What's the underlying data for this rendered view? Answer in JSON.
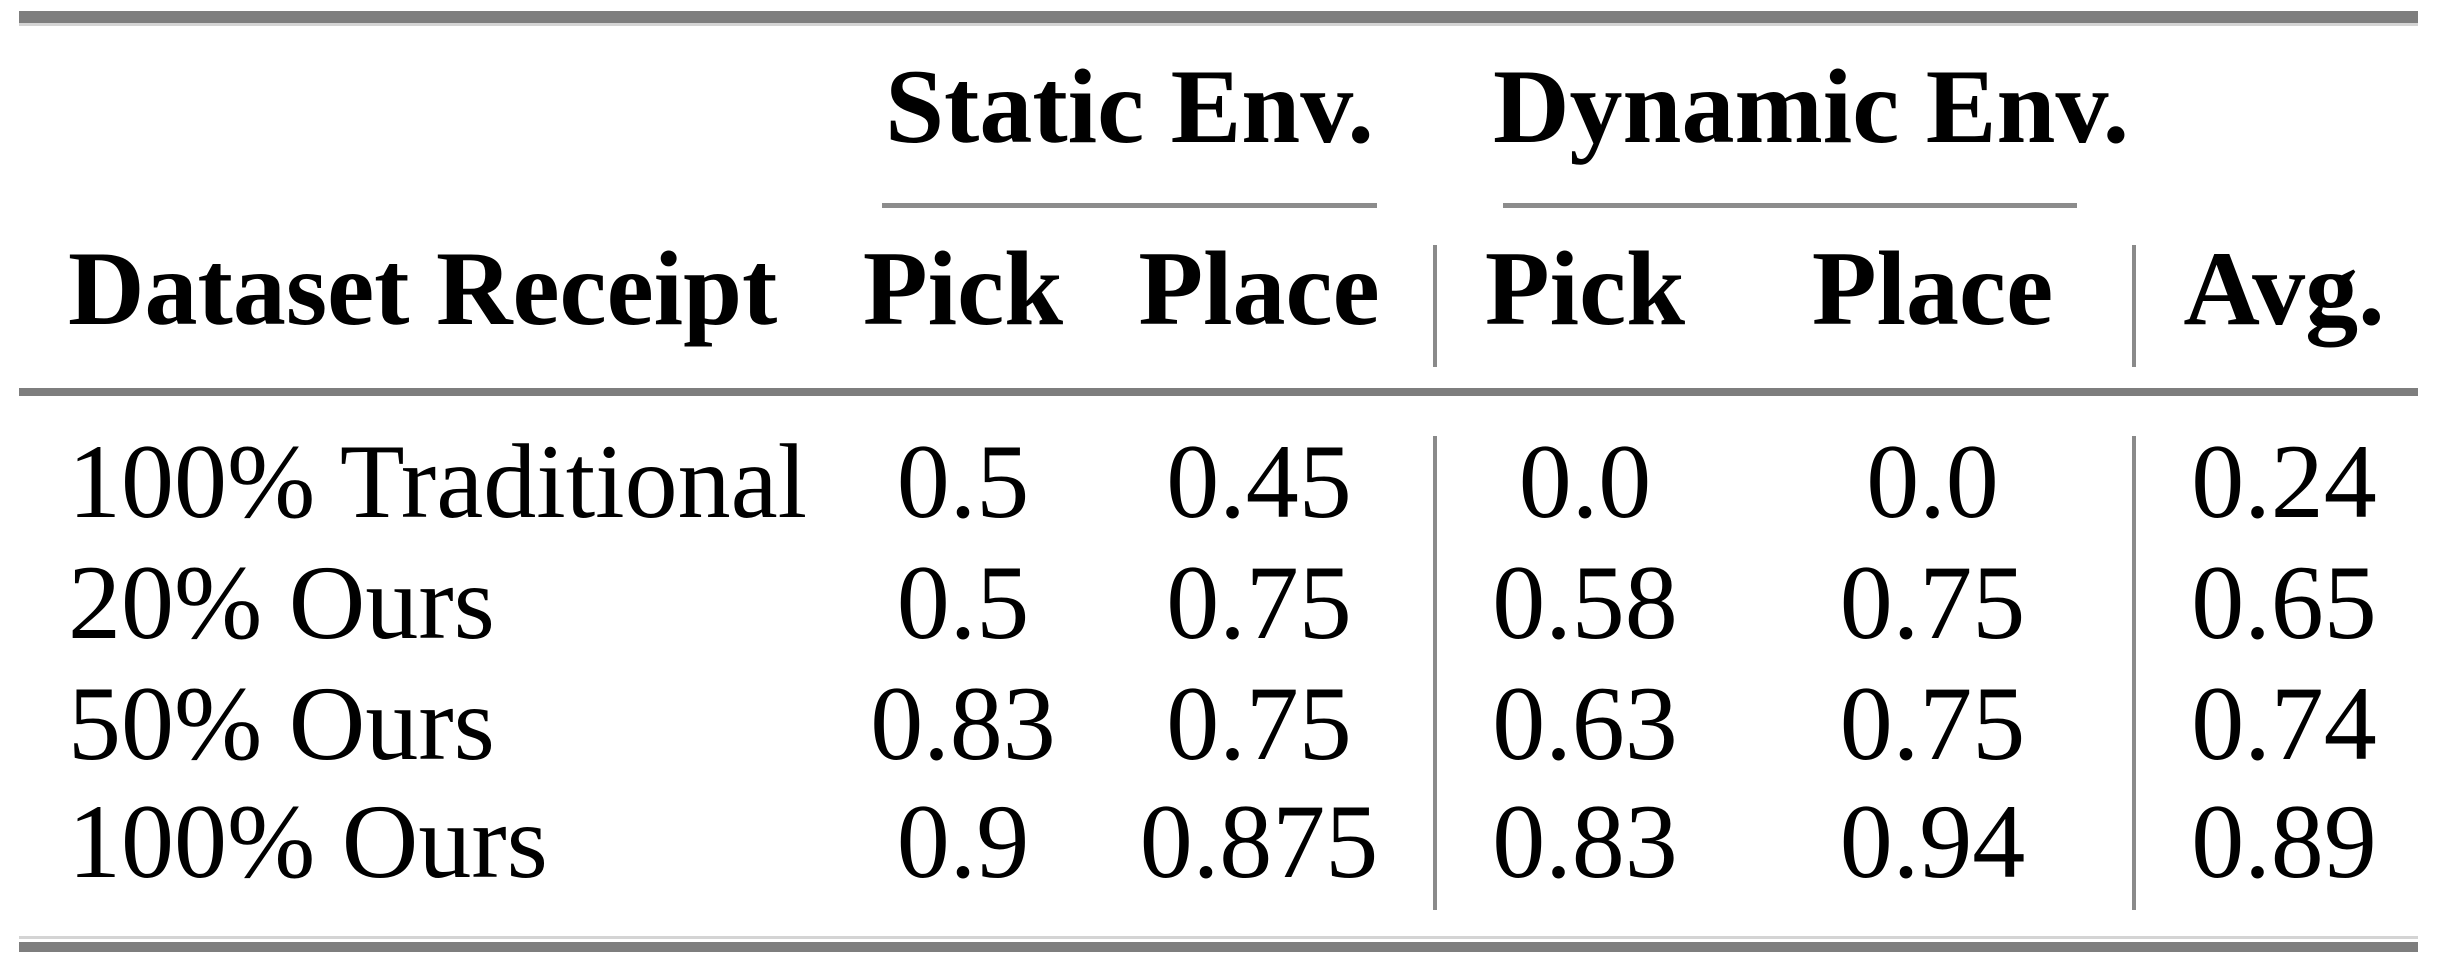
{
  "table": {
    "group_headers": {
      "static": "Static Env.",
      "dynamic": "Dynamic Env."
    },
    "header_row": {
      "dataset_label": "Dataset Receipt",
      "static_pick": "Pick",
      "static_place": "Place",
      "dynamic_pick": "Pick",
      "dynamic_place": "Place",
      "avg": "Avg."
    },
    "rows": [
      {
        "label": "100% Traditional",
        "static_pick": "0.5",
        "static_place": "0.45",
        "dynamic_pick": "0.0",
        "dynamic_place": "0.0",
        "avg": "0.24"
      },
      {
        "label": "20% Ours",
        "static_pick": "0.5",
        "static_place": "0.75",
        "dynamic_pick": "0.58",
        "dynamic_place": "0.75",
        "avg": "0.65"
      },
      {
        "label": "50% Ours",
        "static_pick": "0.83",
        "static_place": "0.75",
        "dynamic_pick": "0.63",
        "dynamic_place": "0.75",
        "avg": "0.74"
      },
      {
        "label": "100% Ours",
        "static_pick": "0.9",
        "static_place": "0.875",
        "dynamic_pick": "0.83",
        "dynamic_place": "0.94",
        "avg": "0.89"
      }
    ],
    "colors": {
      "text": "#000000",
      "thick_rule": "#7e7e7e",
      "light_rule": "#d4d4d4",
      "cmidrule": "#8c8c8c",
      "divider": "#8a8a8a",
      "background": "#ffffff"
    }
  }
}
